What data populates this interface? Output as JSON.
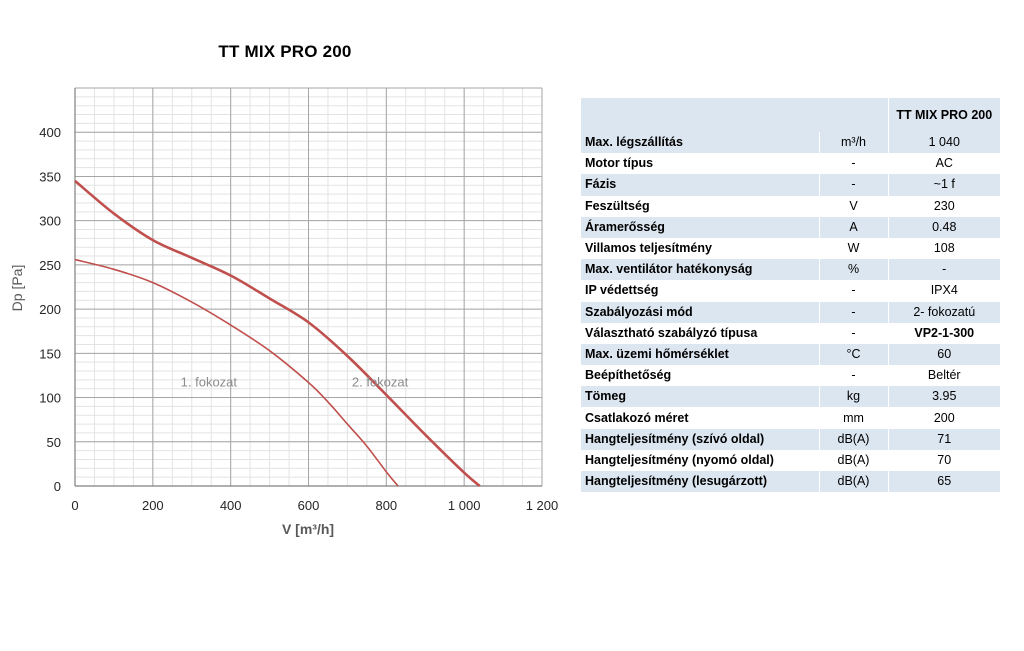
{
  "chart_data": {
    "type": "line",
    "title": "TT MIX PRO 200",
    "xlabel": "V [m³/h]",
    "ylabel": "Dp [Pa]",
    "xlim": [
      0,
      1200
    ],
    "ylim": [
      0,
      450
    ],
    "x_ticks": [
      0,
      200,
      400,
      600,
      800,
      1000,
      1200
    ],
    "x_tick_labels": [
      "0",
      "200",
      "400",
      "600",
      "800",
      "1 000",
      "1 200"
    ],
    "y_ticks": [
      0,
      50,
      100,
      150,
      200,
      250,
      300,
      350,
      400
    ],
    "y_tick_labels": [
      "0",
      "50",
      "100",
      "150",
      "200",
      "250",
      "300",
      "350",
      "400"
    ],
    "grid": true,
    "series": [
      {
        "name": "1. fokozat",
        "color": "#c0504d",
        "x": [
          0,
          100,
          200,
          300,
          400,
          500,
          600,
          650,
          700,
          750,
          800,
          830
        ],
        "y": [
          256,
          245,
          230,
          208,
          182,
          153,
          117,
          95,
          70,
          45,
          16,
          0
        ]
      },
      {
        "name": "2. fokozat",
        "color": "#c0504d",
        "x": [
          0,
          100,
          200,
          300,
          400,
          500,
          600,
          700,
          800,
          900,
          1000,
          1040
        ],
        "y": [
          345,
          308,
          278,
          258,
          238,
          212,
          185,
          147,
          103,
          58,
          15,
          0
        ]
      }
    ],
    "annotations": [
      {
        "text": "1. fokozat",
        "x": 400,
        "y": 115
      },
      {
        "text": "2. fokozat",
        "x": 840,
        "y": 115
      }
    ]
  },
  "table": {
    "header": {
      "blank1": "",
      "blank2": "",
      "model": "TT MIX PRO 200"
    },
    "rows": [
      {
        "param": "Max. légszállítás",
        "unit": "m³/h",
        "value": "1 040",
        "bold": false
      },
      {
        "param": "Motor típus",
        "unit": "-",
        "value": "AC",
        "bold": false
      },
      {
        "param": "Fázis",
        "unit": "-",
        "value": "~1 f",
        "bold": false
      },
      {
        "param": "Feszültség",
        "unit": "V",
        "value": "230",
        "bold": false
      },
      {
        "param": "Áramerősség",
        "unit": "A",
        "value": "0.48",
        "bold": false
      },
      {
        "param": "Villamos teljesítmény",
        "unit": "W",
        "value": "108",
        "bold": false
      },
      {
        "param": "Max. ventilátor hatékonyság",
        "unit": "%",
        "value": "-",
        "bold": false
      },
      {
        "param": "IP védettség",
        "unit": "-",
        "value": "IPX4",
        "bold": false
      },
      {
        "param": "Szabályozási mód",
        "unit": "-",
        "value": "2- fokozatú",
        "bold": false
      },
      {
        "param": "Választható szabályzó típusa",
        "unit": "-",
        "value": "VP2-1-300",
        "bold": true
      },
      {
        "param": "Max. üzemi hőmérséklet",
        "unit": "°C",
        "value": "60",
        "bold": false
      },
      {
        "param": "Beépíthetőség",
        "unit": "-",
        "value": "Beltér",
        "bold": false
      },
      {
        "param": "Tömeg",
        "unit": "kg",
        "value": "3.95",
        "bold": false
      },
      {
        "param": "Csatlakozó méret",
        "unit": "mm",
        "value": "200",
        "bold": false
      },
      {
        "param": "Hangteljesítmény (szívó oldal)",
        "unit": "dB(A)",
        "value": "71",
        "bold": false
      },
      {
        "param": "Hangteljesítmény (nyomó oldal)",
        "unit": "dB(A)",
        "value": "70",
        "bold": false
      },
      {
        "param": "Hangteljesítmény (lesugárzott)",
        "unit": "dB(A)",
        "value": "65",
        "bold": false
      }
    ]
  }
}
